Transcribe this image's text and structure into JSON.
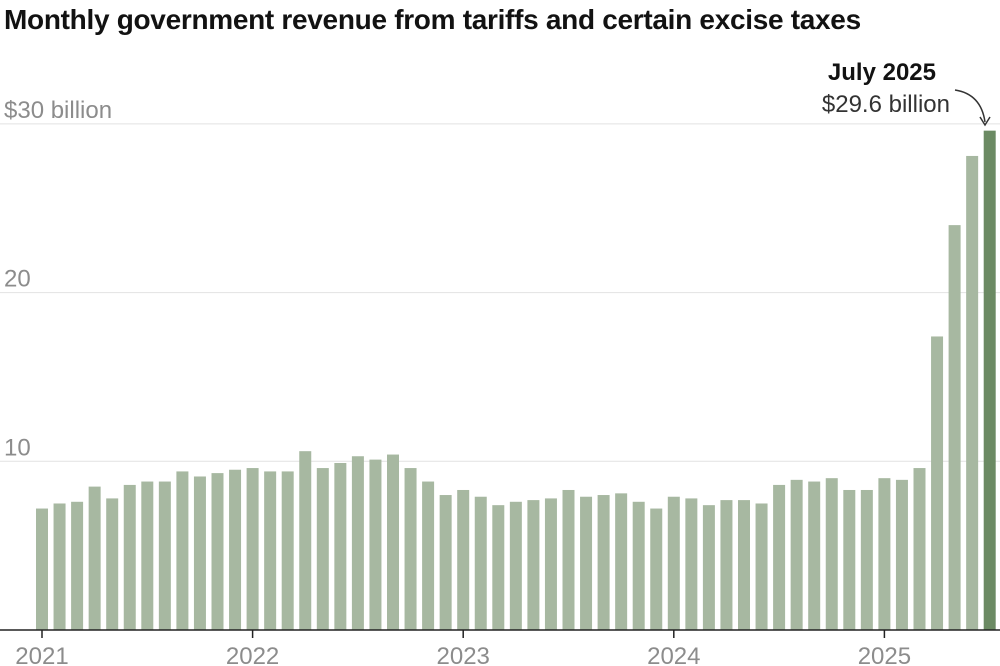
{
  "chart_data": {
    "type": "bar",
    "title": "Monthly government revenue from tariffs and certain excise taxes",
    "ylim": [
      0,
      30
    ],
    "yticks": [
      {
        "value": 10,
        "label": "10"
      },
      {
        "value": 20,
        "label": "20"
      },
      {
        "value": 30,
        "label": "$30 billion"
      }
    ],
    "xticks": [
      {
        "index": 0,
        "label": "2021"
      },
      {
        "index": 12,
        "label": "2022"
      },
      {
        "index": 24,
        "label": "2023"
      },
      {
        "index": 36,
        "label": "2024"
      },
      {
        "index": 48,
        "label": "2025"
      }
    ],
    "x_unit": "month",
    "x_start": "2021-01",
    "x_end": "2025-07",
    "values": [
      7.2,
      7.5,
      7.6,
      8.5,
      7.8,
      8.6,
      8.8,
      8.8,
      9.4,
      9.1,
      9.3,
      9.5,
      9.6,
      9.4,
      9.4,
      10.6,
      9.6,
      9.9,
      10.3,
      10.1,
      10.4,
      9.6,
      8.8,
      8.0,
      8.3,
      7.9,
      7.4,
      7.6,
      7.7,
      7.8,
      8.3,
      7.9,
      8.0,
      8.1,
      7.6,
      7.2,
      7.9,
      7.8,
      7.4,
      7.7,
      7.7,
      7.5,
      8.6,
      8.9,
      8.8,
      9.0,
      8.3,
      8.3,
      9.0,
      8.9,
      9.6,
      17.4,
      24.0,
      28.1,
      29.6
    ],
    "bar_color": "#a7b8a1",
    "highlight_color": "#6b8a63",
    "gridline_color": "#e2e2e2",
    "highlight_index": 54,
    "annotation": {
      "title": "July 2025",
      "value": "$29.6 billion"
    }
  }
}
